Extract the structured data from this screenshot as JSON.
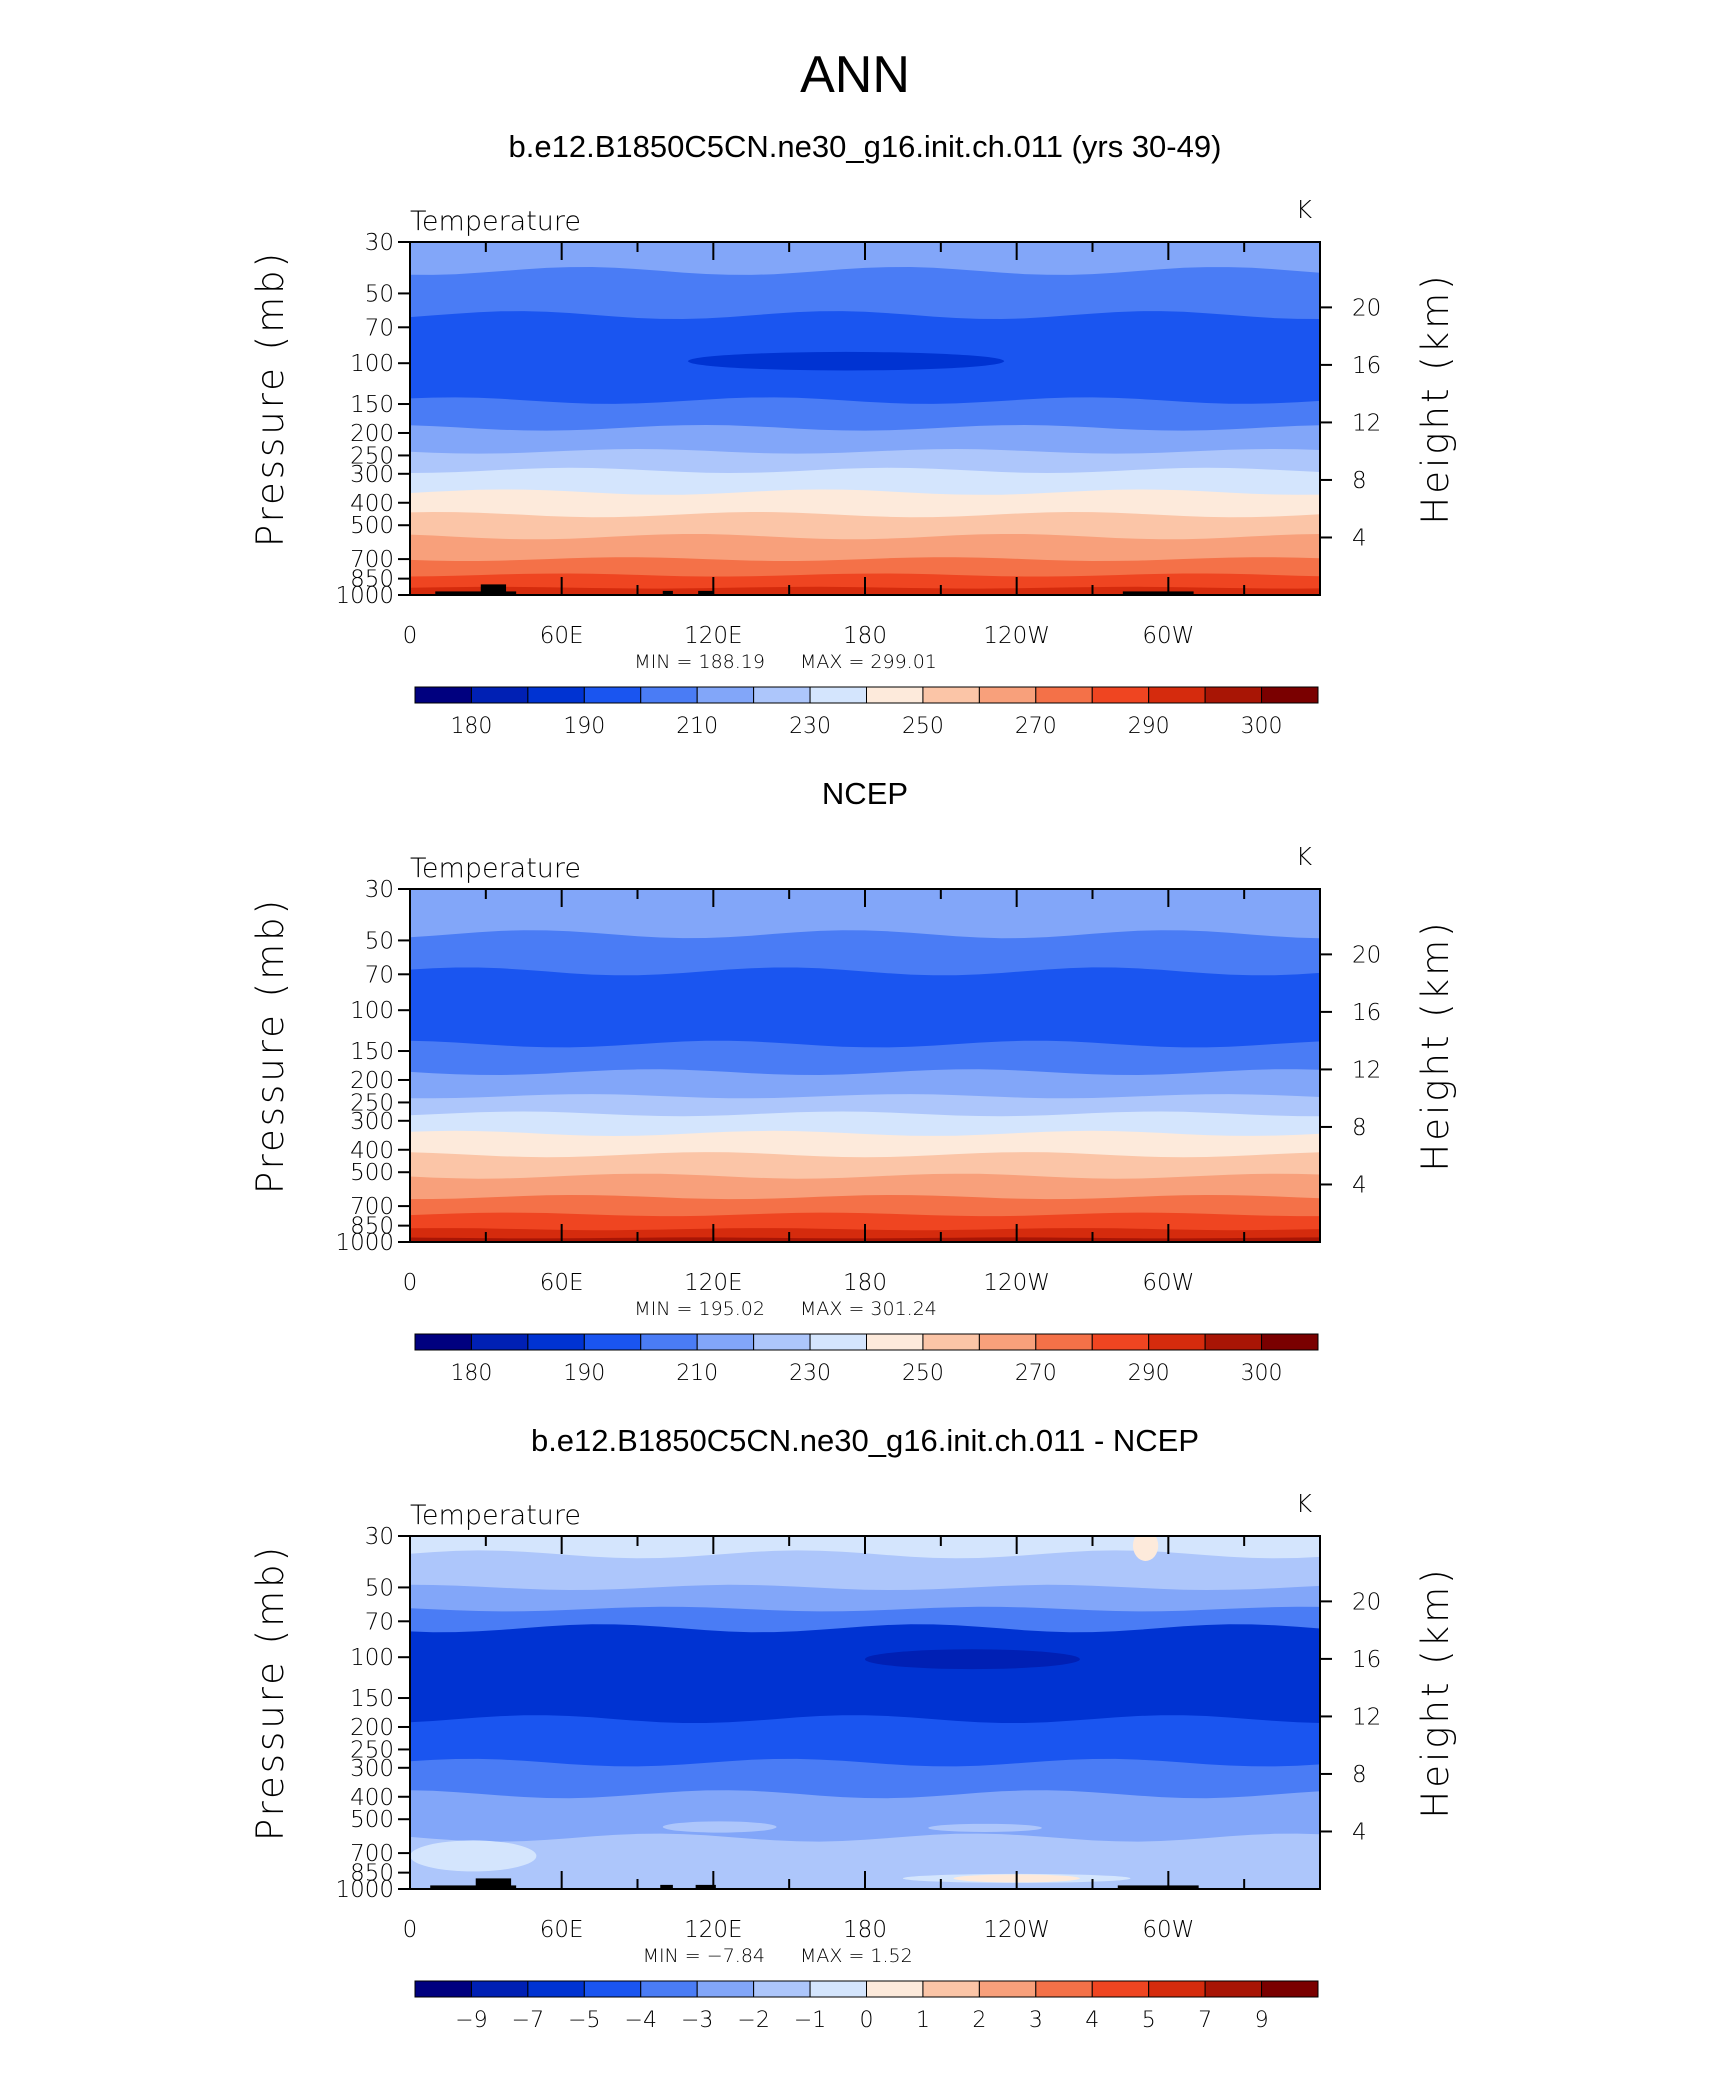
{
  "figure": {
    "title": "ANN"
  },
  "colors": {
    "palette": [
      "#00007f",
      "#0020b4",
      "#0033d2",
      "#1a55f0",
      "#4a7cf5",
      "#82a6f9",
      "#adc6fb",
      "#d4e5fd",
      "#fdeadb",
      "#fbc5a7",
      "#f8a07b",
      "#f47148",
      "#ef4521",
      "#d52b0d",
      "#a81505",
      "#7a0000"
    ],
    "land": "#000000"
  },
  "chart_data": [
    {
      "type": "contour",
      "panel_title": "b.e12.B1850C5CN.ne30_g16.init.ch.011 (yrs 30-49)",
      "left_label": "Temperature",
      "right_label": "K",
      "ylabel": "Pressure (mb)",
      "ylabel_right": "Height (km)",
      "xticks": [
        "0",
        "60E",
        "120E",
        "180",
        "120W",
        "60W"
      ],
      "yticks": [
        "30",
        "50",
        "70",
        "100",
        "150",
        "200",
        "250",
        "300",
        "400",
        "500",
        "700",
        "850",
        "1000"
      ],
      "height_ticks": [
        "20",
        "16",
        "12",
        "8",
        "4"
      ],
      "ylim_mb": [
        30,
        1000
      ],
      "xlim_lon": [
        0,
        360
      ],
      "min_text": "MIN =  188.19",
      "max_text": "MAX =  299.01",
      "colorbar_labels": [
        "180",
        "190",
        "210",
        "230",
        "250",
        "270",
        "290",
        "300"
      ],
      "contour_levels": [
        175,
        180,
        185,
        190,
        200,
        210,
        220,
        230,
        240,
        250,
        260,
        270,
        280,
        290,
        295,
        300
      ],
      "bands": [
        {
          "top_mb": 30,
          "bottom_mb": 40,
          "color_index": 5
        },
        {
          "top_mb": 40,
          "bottom_mb": 62,
          "color_index": 4
        },
        {
          "top_mb": 62,
          "bottom_mb": 145,
          "color_index": 3
        },
        {
          "top_mb": 145,
          "bottom_mb": 190,
          "color_index": 4
        },
        {
          "top_mb": 190,
          "bottom_mb": 240,
          "color_index": 5
        },
        {
          "top_mb": 240,
          "bottom_mb": 290,
          "color_index": 6
        },
        {
          "top_mb": 290,
          "bottom_mb": 360,
          "color_index": 7
        },
        {
          "top_mb": 360,
          "bottom_mb": 450,
          "color_index": 8
        },
        {
          "top_mb": 450,
          "bottom_mb": 560,
          "color_index": 9
        },
        {
          "top_mb": 560,
          "bottom_mb": 700,
          "color_index": 10
        },
        {
          "top_mb": 700,
          "bottom_mb": 820,
          "color_index": 11
        },
        {
          "top_mb": 820,
          "bottom_mb": 930,
          "color_index": 12
        },
        {
          "top_mb": 930,
          "bottom_mb": 1000,
          "color_index": 13
        }
      ],
      "blobs": [
        {
          "lon_from": 110,
          "lon_to": 235,
          "center_mb": 98,
          "half_height_mb": 9,
          "color_index": 2
        }
      ],
      "land": [
        {
          "lon_from": 10,
          "lon_to": 42,
          "top_mb": 965
        },
        {
          "lon_from": 28,
          "lon_to": 38,
          "top_mb": 900
        },
        {
          "lon_from": 100,
          "lon_to": 104,
          "top_mb": 960
        },
        {
          "lon_from": 114,
          "lon_to": 120,
          "top_mb": 960
        },
        {
          "lon_from": 282,
          "lon_to": 310,
          "top_mb": 965
        }
      ]
    },
    {
      "type": "contour",
      "panel_title": "NCEP",
      "left_label": "Temperature",
      "right_label": "K",
      "ylabel": "Pressure (mb)",
      "ylabel_right": "Height (km)",
      "xticks": [
        "0",
        "60E",
        "120E",
        "180",
        "120W",
        "60W"
      ],
      "yticks": [
        "30",
        "50",
        "70",
        "100",
        "150",
        "200",
        "250",
        "300",
        "400",
        "500",
        "700",
        "850",
        "1000"
      ],
      "height_ticks": [
        "20",
        "16",
        "12",
        "8",
        "4"
      ],
      "ylim_mb": [
        30,
        1000
      ],
      "xlim_lon": [
        0,
        360
      ],
      "min_text": "MIN =  195.02",
      "max_text": "MAX =  301.24",
      "colorbar_labels": [
        "180",
        "190",
        "210",
        "230",
        "250",
        "270",
        "290",
        "300"
      ],
      "contour_levels": [
        175,
        180,
        185,
        190,
        200,
        210,
        220,
        230,
        240,
        250,
        260,
        270,
        280,
        290,
        295,
        300
      ],
      "bands": [
        {
          "top_mb": 30,
          "bottom_mb": 47,
          "color_index": 5
        },
        {
          "top_mb": 47,
          "bottom_mb": 68,
          "color_index": 4
        },
        {
          "top_mb": 68,
          "bottom_mb": 140,
          "color_index": 3
        },
        {
          "top_mb": 140,
          "bottom_mb": 185,
          "color_index": 4
        },
        {
          "top_mb": 185,
          "bottom_mb": 235,
          "color_index": 5
        },
        {
          "top_mb": 235,
          "bottom_mb": 280,
          "color_index": 6
        },
        {
          "top_mb": 280,
          "bottom_mb": 340,
          "color_index": 7
        },
        {
          "top_mb": 340,
          "bottom_mb": 420,
          "color_index": 8
        },
        {
          "top_mb": 420,
          "bottom_mb": 520,
          "color_index": 9
        },
        {
          "top_mb": 520,
          "bottom_mb": 640,
          "color_index": 10
        },
        {
          "top_mb": 640,
          "bottom_mb": 760,
          "color_index": 11
        },
        {
          "top_mb": 760,
          "bottom_mb": 880,
          "color_index": 12
        },
        {
          "top_mb": 880,
          "bottom_mb": 960,
          "color_index": 13
        },
        {
          "top_mb": 960,
          "bottom_mb": 1000,
          "color_index": 14
        }
      ],
      "blobs": [],
      "land": []
    },
    {
      "type": "contour",
      "panel_title": "b.e12.B1850C5CN.ne30_g16.init.ch.011 - NCEP",
      "left_label": "Temperature",
      "right_label": "K",
      "ylabel": "Pressure (mb)",
      "ylabel_right": "Height (km)",
      "xticks": [
        "0",
        "60E",
        "120E",
        "180",
        "120W",
        "60W"
      ],
      "yticks": [
        "30",
        "50",
        "70",
        "100",
        "150",
        "200",
        "250",
        "300",
        "400",
        "500",
        "700",
        "850",
        "1000"
      ],
      "height_ticks": [
        "20",
        "16",
        "12",
        "8",
        "4"
      ],
      "ylim_mb": [
        30,
        1000
      ],
      "xlim_lon": [
        0,
        360
      ],
      "min_text": "MIN =   −7.84",
      "max_text": "MAX =     1.52",
      "colorbar_labels": [
        "−9",
        "−7",
        "−5",
        "−4",
        "−3",
        "−2",
        "−1",
        "0",
        "1",
        "2",
        "3",
        "4",
        "5",
        "7",
        "9"
      ],
      "contour_levels": [
        -9,
        -7,
        -5,
        -4,
        -3,
        -2,
        -1,
        0,
        1,
        2,
        3,
        4,
        5,
        7,
        9
      ],
      "bands": [
        {
          "top_mb": 30,
          "bottom_mb": 36,
          "color_index": 7
        },
        {
          "top_mb": 36,
          "bottom_mb": 50,
          "color_index": 6
        },
        {
          "top_mb": 50,
          "bottom_mb": 62,
          "color_index": 5
        },
        {
          "top_mb": 62,
          "bottom_mb": 75,
          "color_index": 4
        },
        {
          "top_mb": 75,
          "bottom_mb": 185,
          "color_index": 2
        },
        {
          "top_mb": 185,
          "bottom_mb": 285,
          "color_index": 3
        },
        {
          "top_mb": 285,
          "bottom_mb": 390,
          "color_index": 4
        },
        {
          "top_mb": 390,
          "bottom_mb": 600,
          "color_index": 5
        },
        {
          "top_mb": 600,
          "bottom_mb": 1000,
          "color_index": 6
        }
      ],
      "blobs": [
        {
          "lon_from": 180,
          "lon_to": 265,
          "center_mb": 102,
          "half_height_mb": 10,
          "color_index": 1
        },
        {
          "lon_from": 0,
          "lon_to": 50,
          "center_mb": 720,
          "half_height_mb": 110,
          "color_index": 7
        },
        {
          "lon_from": 100,
          "lon_to": 145,
          "center_mb": 540,
          "half_height_mb": 30,
          "color_index": 6
        },
        {
          "lon_from": 205,
          "lon_to": 250,
          "center_mb": 545,
          "half_height_mb": 22,
          "color_index": 6
        },
        {
          "lon_from": 195,
          "lon_to": 285,
          "center_mb": 900,
          "half_height_mb": 40,
          "color_index": 7
        },
        {
          "lon_from": 215,
          "lon_to": 265,
          "center_mb": 900,
          "half_height_mb": 15,
          "color_index": 8
        },
        {
          "lon_from": 286,
          "lon_to": 296,
          "center_mb": 33,
          "half_height_mb": 5,
          "color_index": 8
        }
      ],
      "land": [
        {
          "lon_from": 8,
          "lon_to": 42,
          "top_mb": 965
        },
        {
          "lon_from": 26,
          "lon_to": 40,
          "top_mb": 900
        },
        {
          "lon_from": 99,
          "lon_to": 104,
          "top_mb": 960
        },
        {
          "lon_from": 113,
          "lon_to": 121,
          "top_mb": 960
        },
        {
          "lon_from": 280,
          "lon_to": 312,
          "top_mb": 965
        }
      ]
    }
  ]
}
